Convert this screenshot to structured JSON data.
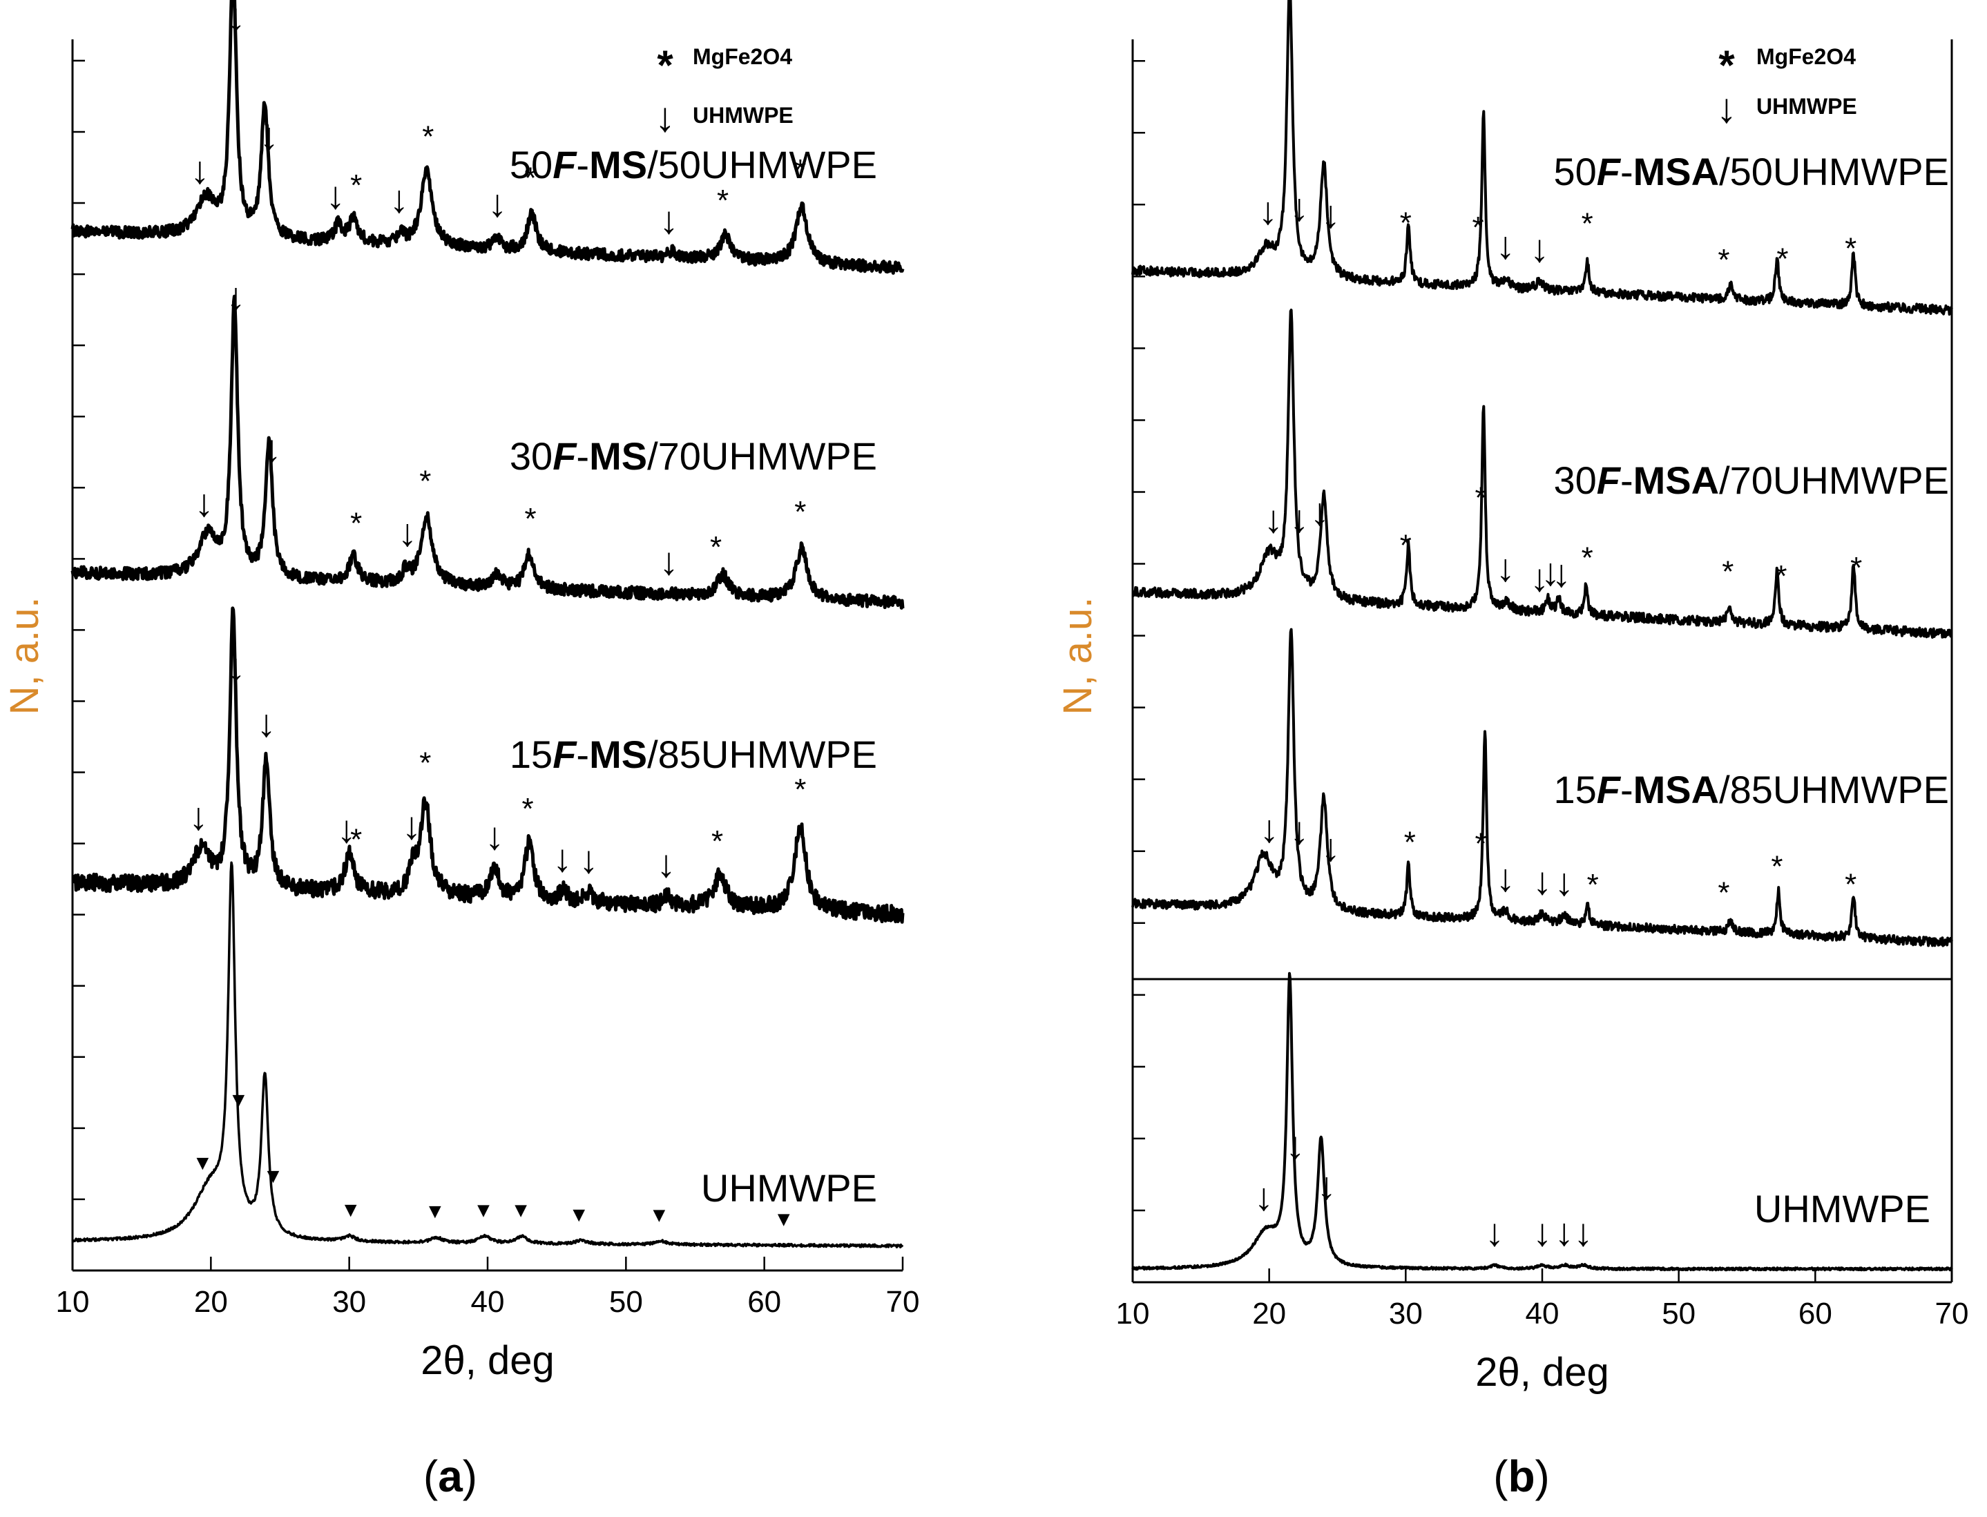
{
  "figure": {
    "panels": [
      {
        "label_open": "(",
        "label_letter": "a",
        "label_close": ")"
      },
      {
        "label_open": "(",
        "label_letter": "b",
        "label_close": ")"
      }
    ]
  },
  "colors": {
    "axis_label": "#d98a2b",
    "trace": "#000000",
    "axes": "#000000"
  },
  "chart_data": [
    {
      "type": "line",
      "panel": "a",
      "xlabel": "2θ, deg",
      "ylabel": "N, a.u.",
      "xlim": [
        10,
        70
      ],
      "x_ticks": [
        10,
        20,
        30,
        40,
        50,
        60,
        70
      ],
      "y_tick_count": 17,
      "legend": [
        {
          "symbol": "*",
          "text": "MgFe2O4"
        },
        {
          "symbol": "↓",
          "text": "UHMWPE"
        }
      ],
      "series": [
        {
          "name_parts": [
            "50",
            "F",
            "-",
            "MS",
            "/50UHMWPE"
          ],
          "baseline": 0.3,
          "peak_max": 3.2,
          "noise": 0.07,
          "line_width": 5,
          "slope": 0.45,
          "peaks": [
            [
              19.6,
              0.45,
              0.8
            ],
            [
              21.6,
              3.3,
              0.28
            ],
            [
              23.9,
              1.6,
              0.3
            ],
            [
              29.2,
              0.2,
              0.3
            ],
            [
              30.3,
              0.28,
              0.4
            ],
            [
              33.7,
              0.12,
              0.3
            ],
            [
              35.6,
              0.9,
              0.5
            ],
            [
              40.7,
              0.15,
              0.3
            ],
            [
              43.2,
              0.45,
              0.4
            ],
            [
              53.3,
              0.08,
              0.3
            ],
            [
              57.2,
              0.3,
              0.5
            ],
            [
              62.7,
              0.7,
              0.5
            ]
          ],
          "markers": [
            {
              "x": 19.2,
              "s": "↓"
            },
            {
              "x": 21.8,
              "s": "↓"
            },
            {
              "x": 24.2,
              "s": "↓"
            },
            {
              "x": 29.0,
              "s": "↓"
            },
            {
              "x": 33.6,
              "s": "↓"
            },
            {
              "x": 40.7,
              "s": "↓"
            },
            {
              "x": 53.1,
              "s": "↓"
            },
            {
              "x": 30.5,
              "s": "*"
            },
            {
              "x": 35.7,
              "s": "*"
            },
            {
              "x": 43.1,
              "s": "*"
            },
            {
              "x": 57.0,
              "s": "*"
            },
            {
              "x": 62.6,
              "s": "*"
            }
          ]
        },
        {
          "name_parts": [
            "30",
            "F",
            "-",
            "MS",
            "/70UHMWPE"
          ],
          "baseline": 0.3,
          "peak_max": 3.0,
          "noise": 0.07,
          "line_width": 5,
          "slope": 0.35,
          "peaks": [
            [
              19.8,
              0.5,
              0.8
            ],
            [
              21.7,
              3.2,
              0.28
            ],
            [
              24.2,
              1.6,
              0.3
            ],
            [
              30.3,
              0.3,
              0.4
            ],
            [
              34.1,
              0.15,
              0.3
            ],
            [
              35.6,
              0.8,
              0.5
            ],
            [
              40.7,
              0.15,
              0.4
            ],
            [
              43.0,
              0.4,
              0.4
            ],
            [
              57.0,
              0.25,
              0.5
            ],
            [
              62.7,
              0.6,
              0.5
            ]
          ],
          "markers": [
            {
              "x": 19.5,
              "s": "↓"
            },
            {
              "x": 21.8,
              "s": "↓"
            },
            {
              "x": 24.4,
              "s": "↓"
            },
            {
              "x": 34.2,
              "s": "↓"
            },
            {
              "x": 53.1,
              "s": "↓"
            },
            {
              "x": 30.5,
              "s": "*"
            },
            {
              "x": 35.5,
              "s": "*"
            },
            {
              "x": 43.1,
              "s": "*"
            },
            {
              "x": 56.5,
              "s": "*"
            },
            {
              "x": 62.6,
              "s": "*"
            }
          ]
        },
        {
          "name_parts": [
            "15",
            "F",
            "-",
            "MS",
            "/85UHMWPE"
          ],
          "baseline": 0.3,
          "peak_max": 2.8,
          "noise": 0.09,
          "line_width": 5,
          "slope": 0.35,
          "peaks": [
            [
              19.3,
              0.4,
              0.7
            ],
            [
              21.6,
              3.0,
              0.28
            ],
            [
              24.0,
              1.4,
              0.3
            ],
            [
              30.0,
              0.4,
              0.4
            ],
            [
              34.6,
              0.25,
              0.3
            ],
            [
              35.5,
              1.0,
              0.45
            ],
            [
              40.5,
              0.3,
              0.4
            ],
            [
              43.0,
              0.6,
              0.4
            ],
            [
              45.5,
              0.1,
              0.3
            ],
            [
              47.3,
              0.1,
              0.3
            ],
            [
              53.0,
              0.1,
              0.3
            ],
            [
              56.8,
              0.35,
              0.5
            ],
            [
              62.6,
              0.9,
              0.5
            ]
          ],
          "markers": [
            {
              "x": 19.1,
              "s": "↓"
            },
            {
              "x": 21.8,
              "s": "↓"
            },
            {
              "x": 24.0,
              "s": "↓"
            },
            {
              "x": 29.8,
              "s": "↓"
            },
            {
              "x": 34.5,
              "s": "↓"
            },
            {
              "x": 40.5,
              "s": "↓"
            },
            {
              "x": 45.4,
              "s": "↓"
            },
            {
              "x": 47.3,
              "s": "↓"
            },
            {
              "x": 52.9,
              "s": "↓"
            },
            {
              "x": 30.5,
              "s": "*"
            },
            {
              "x": 35.5,
              "s": "*"
            },
            {
              "x": 42.9,
              "s": "*"
            },
            {
              "x": 56.6,
              "s": "*"
            },
            {
              "x": 62.6,
              "s": "*"
            }
          ]
        },
        {
          "name_parts": [
            "UHMWPE"
          ],
          "baseline": 0.2,
          "peak_max": 4.0,
          "noise": 0.015,
          "line_width": 3.5,
          "slope": 0.05,
          "peaks": [
            [
              20.0,
              0.6,
              1.5
            ],
            [
              21.5,
              4.0,
              0.3
            ],
            [
              23.9,
              1.8,
              0.3
            ],
            [
              30.0,
              0.06,
              0.5
            ],
            [
              36.3,
              0.06,
              0.5
            ],
            [
              39.8,
              0.08,
              0.5
            ],
            [
              42.5,
              0.08,
              0.5
            ],
            [
              46.8,
              0.04,
              0.5
            ],
            [
              52.5,
              0.04,
              0.5
            ]
          ],
          "markers": [
            {
              "x": 19.4,
              "s": "▼"
            },
            {
              "x": 22.0,
              "s": "▼"
            },
            {
              "x": 24.5,
              "s": "▼"
            },
            {
              "x": 30.1,
              "s": "▼"
            },
            {
              "x": 36.2,
              "s": "▼"
            },
            {
              "x": 39.7,
              "s": "▼"
            },
            {
              "x": 42.4,
              "s": "▼"
            },
            {
              "x": 46.6,
              "s": "▼"
            },
            {
              "x": 52.4,
              "s": "▼"
            },
            {
              "x": 61.4,
              "s": "▼"
            }
          ]
        }
      ]
    },
    {
      "type": "line",
      "panel": "b",
      "xlabel": "2θ, deg",
      "ylabel": "N, a.u.",
      "xlim": [
        10,
        70
      ],
      "x_ticks": [
        10,
        20,
        30,
        40,
        50,
        60,
        70
      ],
      "y_tick_count": 17,
      "legend": [
        {
          "symbol": "*",
          "text": "MgFe2O4"
        },
        {
          "symbol": "↓",
          "text": "UHMWPE"
        }
      ],
      "series": [
        {
          "name_parts": [
            "50",
            "F",
            "-",
            "MSA",
            "/50UHMWPE"
          ],
          "baseline": 0.2,
          "peak_max": 3.4,
          "noise": 0.05,
          "line_width": 4,
          "slope": 0.45,
          "peaks": [
            [
              19.8,
              0.3,
              0.8
            ],
            [
              21.5,
              3.3,
              0.25
            ],
            [
              24.0,
              1.3,
              0.3
            ],
            [
              30.2,
              0.7,
              0.15
            ],
            [
              35.7,
              2.0,
              0.15
            ],
            [
              37.3,
              0.1,
              0.3
            ],
            [
              39.8,
              0.1,
              0.3
            ],
            [
              43.3,
              0.35,
              0.15
            ],
            [
              53.8,
              0.2,
              0.15
            ],
            [
              57.2,
              0.5,
              0.15
            ],
            [
              62.8,
              0.6,
              0.15
            ]
          ],
          "markers": [
            {
              "x": 19.9,
              "s": "↓"
            },
            {
              "x": 22.2,
              "s": "↓"
            },
            {
              "x": 24.5,
              "s": "↓"
            },
            {
              "x": 37.3,
              "s": "↓"
            },
            {
              "x": 39.8,
              "s": "↓"
            },
            {
              "x": 30.0,
              "s": "*"
            },
            {
              "x": 35.3,
              "s": "*"
            },
            {
              "x": 43.3,
              "s": "*"
            },
            {
              "x": 53.3,
              "s": "*"
            },
            {
              "x": 57.6,
              "s": "*"
            },
            {
              "x": 62.6,
              "s": "*"
            }
          ]
        },
        {
          "name_parts": [
            "30",
            "F",
            "-",
            "MSA",
            "/70UHMWPE"
          ],
          "baseline": 0.2,
          "peak_max": 3.0,
          "noise": 0.05,
          "line_width": 4,
          "slope": 0.45,
          "peaks": [
            [
              20.0,
              0.45,
              0.8
            ],
            [
              21.6,
              3.0,
              0.25
            ],
            [
              24.0,
              1.1,
              0.3
            ],
            [
              30.2,
              0.65,
              0.15
            ],
            [
              35.7,
              2.2,
              0.15
            ],
            [
              37.4,
              0.1,
              0.3
            ],
            [
              40.4,
              0.15,
              0.2
            ],
            [
              41.2,
              0.15,
              0.2
            ],
            [
              43.2,
              0.3,
              0.15
            ],
            [
              53.7,
              0.2,
              0.15
            ],
            [
              57.2,
              0.6,
              0.15
            ],
            [
              62.8,
              0.7,
              0.15
            ]
          ],
          "markers": [
            {
              "x": 20.3,
              "s": "↓"
            },
            {
              "x": 22.2,
              "s": "↓"
            },
            {
              "x": 23.7,
              "s": "↓"
            },
            {
              "x": 37.3,
              "s": "↓"
            },
            {
              "x": 39.8,
              "s": "↓"
            },
            {
              "x": 40.6,
              "s": "↓"
            },
            {
              "x": 41.4,
              "s": "↓"
            },
            {
              "x": 30.0,
              "s": "*"
            },
            {
              "x": 35.5,
              "s": "*"
            },
            {
              "x": 43.3,
              "s": "*"
            },
            {
              "x": 53.6,
              "s": "*"
            },
            {
              "x": 57.5,
              "s": "*"
            },
            {
              "x": 63.0,
              "s": "*"
            }
          ]
        },
        {
          "name_parts": [
            "15",
            "F",
            "-",
            "MSA",
            "/85UHMWPE"
          ],
          "baseline": 0.2,
          "peak_max": 3.2,
          "noise": 0.05,
          "line_width": 4,
          "slope": 0.45,
          "peaks": [
            [
              19.6,
              0.6,
              0.8
            ],
            [
              21.6,
              3.2,
              0.25
            ],
            [
              24.0,
              1.3,
              0.3
            ],
            [
              30.2,
              0.6,
              0.15
            ],
            [
              35.8,
              2.2,
              0.15
            ],
            [
              37.3,
              0.1,
              0.3
            ],
            [
              40.0,
              0.1,
              0.3
            ],
            [
              41.6,
              0.1,
              0.3
            ],
            [
              43.3,
              0.25,
              0.15
            ],
            [
              53.8,
              0.15,
              0.15
            ],
            [
              57.3,
              0.5,
              0.15
            ],
            [
              62.8,
              0.5,
              0.15
            ]
          ],
          "markers": [
            {
              "x": 20.0,
              "s": "↓"
            },
            {
              "x": 22.2,
              "s": "↓"
            },
            {
              "x": 24.5,
              "s": "↓"
            },
            {
              "x": 37.3,
              "s": "↓"
            },
            {
              "x": 40.0,
              "s": "↓"
            },
            {
              "x": 41.6,
              "s": "↓"
            },
            {
              "x": 30.3,
              "s": "*"
            },
            {
              "x": 35.5,
              "s": "*"
            },
            {
              "x": 43.7,
              "s": "*"
            },
            {
              "x": 53.3,
              "s": "*"
            },
            {
              "x": 57.2,
              "s": "*"
            },
            {
              "x": 62.6,
              "s": "*"
            }
          ]
        },
        {
          "name_parts": [
            "UHMWPE"
          ],
          "baseline": 0.1,
          "peak_max": 4.0,
          "noise": 0.015,
          "line_width": 4,
          "slope": 0.0,
          "peaks": [
            [
              19.8,
              0.5,
              1.2
            ],
            [
              21.5,
              4.0,
              0.25
            ],
            [
              23.8,
              1.8,
              0.3
            ],
            [
              36.5,
              0.05,
              0.4
            ],
            [
              40.0,
              0.05,
              0.4
            ],
            [
              41.6,
              0.05,
              0.4
            ],
            [
              43.0,
              0.05,
              0.4
            ]
          ],
          "markers": [
            {
              "x": 19.6,
              "s": "↓"
            },
            {
              "x": 21.9,
              "s": "↓"
            },
            {
              "x": 24.2,
              "s": "↓"
            },
            {
              "x": 36.5,
              "s": "↓"
            },
            {
              "x": 40.0,
              "s": "↓"
            },
            {
              "x": 41.6,
              "s": "↓"
            },
            {
              "x": 43.0,
              "s": "↓"
            }
          ]
        }
      ]
    }
  ]
}
